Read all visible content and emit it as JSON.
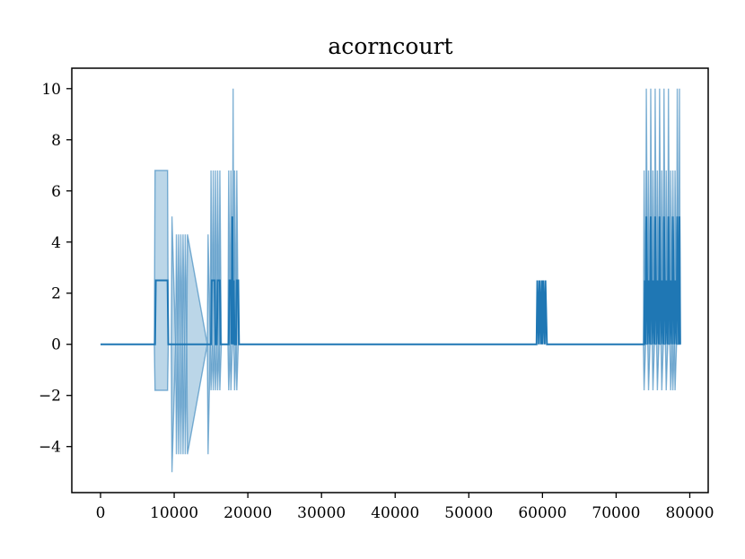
{
  "chart_data": {
    "type": "line",
    "title": "acorncourt",
    "xlabel": "",
    "ylabel": "",
    "xlim": [
      -3900,
      82500
    ],
    "ylim": [
      -5.8,
      10.8
    ],
    "x_ticks": [
      0,
      10000,
      20000,
      30000,
      40000,
      50000,
      60000,
      70000,
      80000
    ],
    "x_tick_labels": [
      "0",
      "10000",
      "20000",
      "30000",
      "40000",
      "50000",
      "60000",
      "70000",
      "80000"
    ],
    "y_ticks": [
      -4,
      -2,
      0,
      2,
      4,
      6,
      8,
      10
    ],
    "y_tick_labels": [
      "−4",
      "−2",
      "0",
      "2",
      "4",
      "6",
      "8",
      "10"
    ],
    "grid": false,
    "legend": "none",
    "series_color": "#1f77b4",
    "band_opacity": 0.3,
    "mean_series": {
      "x": [
        0,
        7400,
        7500,
        9100,
        9200,
        15000,
        15100,
        15500,
        15600,
        15800,
        15900,
        16200,
        16300,
        17400,
        17500,
        17700,
        17800,
        17900,
        18000,
        18100,
        18200,
        18400,
        18500,
        18700,
        18800,
        19000,
        19100,
        59200,
        59300,
        59500,
        59600,
        59800,
        59900,
        60000,
        60100,
        60300,
        60400,
        60600,
        60700,
        73800,
        73900,
        74000,
        74100,
        74300,
        74400,
        74600,
        74700,
        74900,
        75000,
        75200,
        75300,
        75500,
        75600,
        75800,
        75900,
        76100,
        76200,
        76400,
        76500,
        76700,
        76800,
        77000,
        77100,
        77300,
        77400,
        77600,
        77700,
        77900,
        78000,
        78200,
        78300,
        78500,
        78600,
        78700
      ],
      "y": [
        0,
        0,
        2.5,
        2.5,
        0,
        0,
        2.5,
        2.5,
        0,
        0,
        2.5,
        2.5,
        0,
        0,
        2.5,
        2.5,
        0,
        5,
        0,
        2.5,
        0,
        0,
        2.5,
        2.5,
        0,
        0,
        0,
        0,
        2.5,
        0,
        2.5,
        0,
        2.5,
        0,
        2.5,
        0,
        2.5,
        0,
        0,
        0,
        2.5,
        0,
        5,
        0,
        2.5,
        0,
        5,
        0,
        2.5,
        0,
        5,
        0,
        2.5,
        0,
        5,
        0,
        2.5,
        0,
        5,
        0,
        2.5,
        0,
        5,
        0,
        2.5,
        0,
        5,
        0,
        2.5,
        0,
        5,
        0,
        5,
        0
      ]
    },
    "band_upper": {
      "x": [
        0,
        7300,
        7400,
        9100,
        9200,
        9600,
        9700,
        10200,
        10300,
        10500,
        10600,
        10800,
        10900,
        11100,
        11200,
        11400,
        11500,
        11700,
        11800,
        14500,
        14600,
        14900,
        15000,
        15200,
        15300,
        15500,
        15600,
        15800,
        15900,
        16100,
        16200,
        16400,
        16500,
        17300,
        17400,
        17600,
        17700,
        17900,
        18000,
        18100,
        18200,
        18400,
        18500,
        18700,
        18800,
        19000,
        19100,
        59200,
        59300,
        59500,
        59600,
        59800,
        59900,
        60000,
        60100,
        60300,
        60400,
        60600,
        60700,
        73700,
        73800,
        74000,
        74100,
        74300,
        74400,
        74600,
        74700,
        74900,
        75000,
        75200,
        75300,
        75500,
        75600,
        75800,
        75900,
        76100,
        76200,
        76400,
        76500,
        76700,
        76800,
        77000,
        77100,
        77300,
        77400,
        77600,
        77700,
        77900,
        78000,
        78200,
        78300,
        78500,
        78600,
        78700
      ],
      "y": [
        0,
        0,
        6.8,
        6.8,
        0,
        0,
        5,
        0,
        4.3,
        0,
        4.3,
        0,
        4.3,
        0,
        4.3,
        0,
        4.3,
        0,
        4.3,
        0,
        4.3,
        0,
        6.8,
        0,
        6.8,
        0,
        6.8,
        0,
        6.8,
        0,
        6.8,
        0,
        0,
        0,
        6.8,
        0,
        6.8,
        0,
        10,
        0,
        6.8,
        0,
        6.8,
        0,
        0,
        0,
        0,
        0,
        2.5,
        0,
        2.5,
        0,
        2.5,
        0,
        2.5,
        0,
        2.5,
        0,
        0,
        0,
        6.8,
        0,
        10,
        0,
        6.8,
        0,
        10,
        0,
        6.8,
        0,
        10,
        0,
        6.8,
        0,
        10,
        0,
        6.8,
        0,
        10,
        0,
        6.8,
        0,
        10,
        0,
        6.8,
        0,
        6.8,
        0,
        6.8,
        0,
        10,
        0,
        10,
        0
      ]
    },
    "band_lower": {
      "x": [
        0,
        7300,
        7400,
        9100,
        9200,
        9600,
        9700,
        10200,
        10300,
        10500,
        10600,
        10800,
        10900,
        11100,
        11200,
        11400,
        11500,
        11700,
        11800,
        14500,
        14600,
        14900,
        15000,
        15200,
        15300,
        15500,
        15600,
        15800,
        15900,
        16100,
        16200,
        16400,
        16500,
        17300,
        17400,
        17600,
        17700,
        17900,
        18000,
        18100,
        18200,
        18400,
        18500,
        18700,
        18800,
        19000,
        19100,
        59200,
        59300,
        59500,
        59600,
        59800,
        59900,
        60000,
        60100,
        60300,
        60400,
        60600,
        60700,
        73700,
        73800,
        74000,
        74100,
        74300,
        74400,
        74600,
        74700,
        74900,
        75000,
        75200,
        75300,
        75500,
        75600,
        75800,
        75900,
        76100,
        76200,
        76400,
        76500,
        76700,
        76800,
        77000,
        77100,
        77300,
        77400,
        77600,
        77700,
        77900,
        78000,
        78200,
        78300,
        78500,
        78600,
        78700
      ],
      "y": [
        0,
        0,
        -1.8,
        -1.8,
        0,
        0,
        -5,
        0,
        -4.3,
        0,
        -4.3,
        0,
        -4.3,
        0,
        -4.3,
        0,
        -4.3,
        0,
        -4.3,
        0,
        -4.3,
        0,
        -1.8,
        0,
        -1.8,
        0,
        -1.8,
        0,
        -1.8,
        0,
        -1.8,
        0,
        0,
        0,
        -1.8,
        0,
        -1.8,
        0,
        0,
        0,
        -1.8,
        0,
        -1.8,
        0,
        0,
        0,
        0,
        0,
        2.5,
        0,
        2.5,
        0,
        2.5,
        0,
        2.5,
        0,
        2.5,
        0,
        0,
        0,
        -1.8,
        0,
        0,
        0,
        -1.8,
        0,
        0,
        0,
        -1.8,
        0,
        0,
        0,
        -1.8,
        0,
        0,
        0,
        -1.8,
        0,
        0,
        0,
        -1.8,
        0,
        0,
        0,
        -1.8,
        0,
        -1.8,
        0,
        -1.8,
        0,
        0,
        0,
        0,
        0
      ]
    }
  }
}
